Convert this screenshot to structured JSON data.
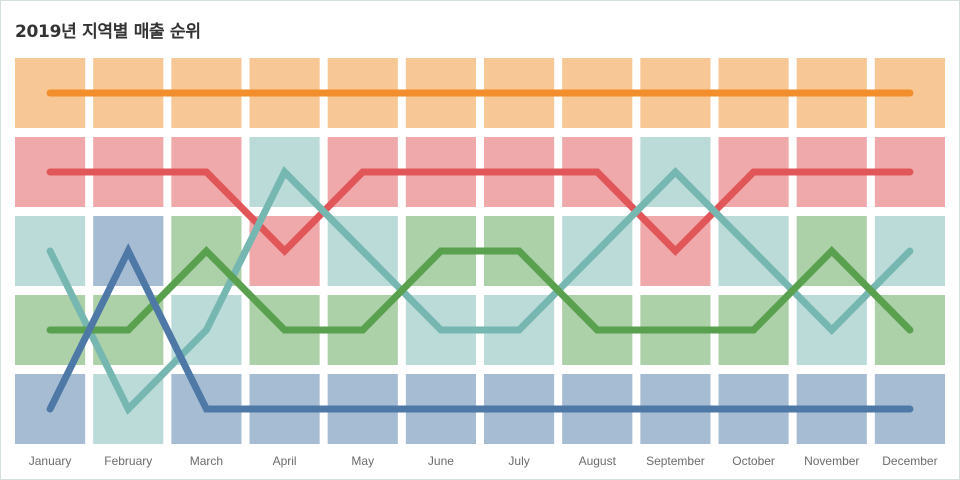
{
  "title": "2019년 지역별 매출 순위",
  "chart_data": {
    "type": "line",
    "title": "2019년 지역별 매출 순위",
    "subtitle": "",
    "xlabel": "",
    "ylabel": "",
    "categories": [
      "January",
      "February",
      "March",
      "April",
      "May",
      "June",
      "July",
      "August",
      "September",
      "October",
      "November",
      "December"
    ],
    "y_axis": "rank (1 = top row, 5 = bottom row), no tick labels shown",
    "ylim": [
      1,
      5
    ],
    "grid": false,
    "legend": "none",
    "series": [
      {
        "color": "#f28e2b",
        "cell_color": "#f8c796",
        "values": [
          1,
          1,
          1,
          1,
          1,
          1,
          1,
          1,
          1,
          1,
          1,
          1
        ]
      },
      {
        "color": "#e15759",
        "cell_color": "#f0a9aa",
        "values": [
          2,
          2,
          2,
          3,
          2,
          2,
          2,
          2,
          3,
          2,
          2,
          2
        ]
      },
      {
        "color": "#76b7b2",
        "cell_color": "#bbdbd9",
        "values": [
          3,
          5,
          4,
          2,
          3,
          4,
          4,
          3,
          2,
          3,
          4,
          3
        ]
      },
      {
        "color": "#59a14f",
        "cell_color": "#acd0a7",
        "values": [
          4,
          4,
          3,
          4,
          4,
          3,
          3,
          4,
          4,
          4,
          3,
          4
        ]
      },
      {
        "color": "#4e79a7",
        "cell_color": "#a6bcd3",
        "values": [
          5,
          3,
          5,
          5,
          5,
          5,
          5,
          5,
          5,
          5,
          5,
          5
        ]
      }
    ]
  }
}
